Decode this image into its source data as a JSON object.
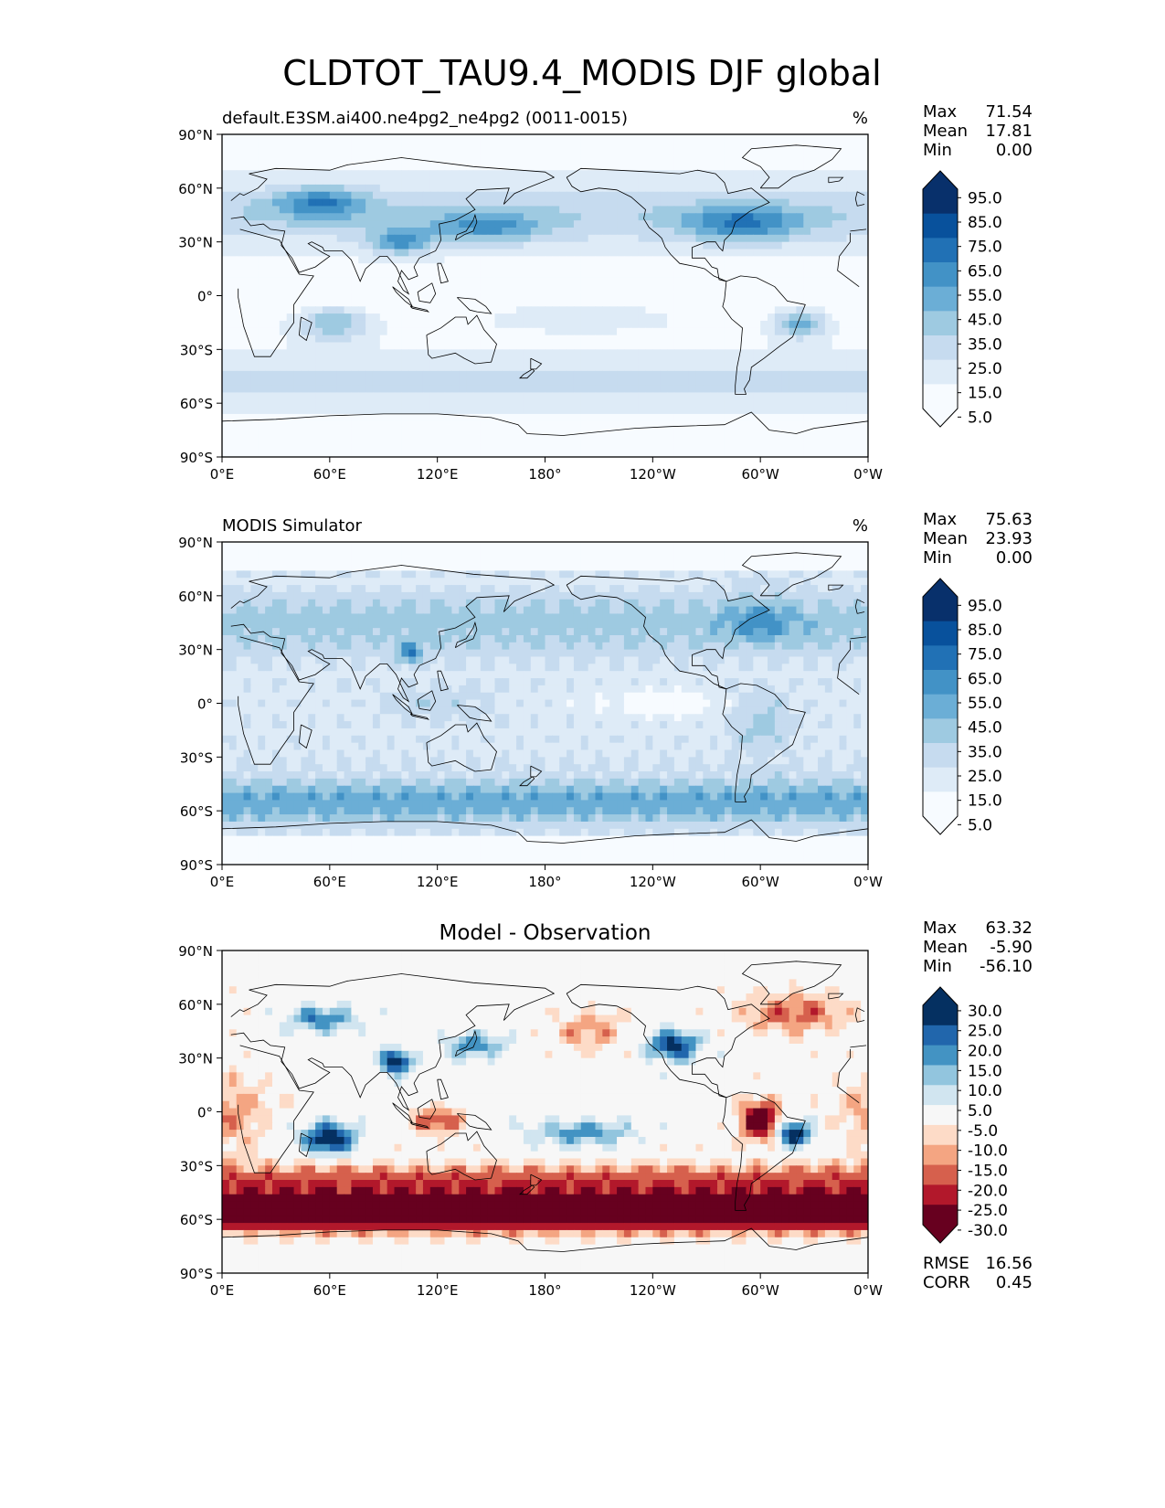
{
  "title": "CLDTOT_TAU9.4_MODIS DJF global",
  "colors": {
    "blues": [
      "#f7fbff",
      "#deebf7",
      "#c6dbef",
      "#9ecae1",
      "#6baed6",
      "#4292c6",
      "#2171b5",
      "#08519c",
      "#08306b"
    ],
    "diff": [
      "#67001f",
      "#b2182b",
      "#d6604d",
      "#f4a582",
      "#fddbc7",
      "#f7f7f7",
      "#d1e5f0",
      "#92c5de",
      "#4393c3",
      "#2166ac",
      "#053061"
    ],
    "coast": "#000000"
  },
  "axes": {
    "lat_ticks": [
      "90°N",
      "60°N",
      "30°N",
      "0°",
      "30°S",
      "60°S",
      "90°S"
    ],
    "lon_ticks": [
      "0°E",
      "60°E",
      "120°E",
      "180°",
      "120°W",
      "60°W",
      "0°W"
    ]
  },
  "chart_data": [
    {
      "type": "heatmap",
      "projection": "PlateCarree",
      "panel": "test",
      "left_title": "default.E3SM.ai400.ne4pg2_ne4pg2 (0011-0015)",
      "center_title": "",
      "units": "%",
      "xlim": [
        0,
        360
      ],
      "ylim": [
        -90,
        90
      ],
      "stats": {
        "labels": [
          "Max",
          "Mean",
          "Min"
        ],
        "values": [
          "71.54",
          "17.81",
          "0.00"
        ]
      },
      "colorbar": {
        "labels": [
          "95.0",
          "85.0",
          "75.0",
          "65.0",
          "55.0",
          "45.0",
          "35.0",
          "25.0",
          "15.0",
          "5.0"
        ],
        "extend": "both"
      },
      "features": [
        {
          "lon": 55,
          "lat": 52,
          "value": 62
        },
        {
          "lon": 100,
          "lat": 30,
          "value": 60
        },
        {
          "lon": 148,
          "lat": 38,
          "value": 58
        },
        {
          "lon": 290,
          "lat": 40,
          "value": 62
        },
        {
          "lon": 62,
          "lat": -15,
          "value": 55
        },
        {
          "lon": 322,
          "lat": -15,
          "value": 60
        },
        {
          "lon": 20,
          "lat": -50,
          "value": 40
        },
        {
          "lon": 340,
          "lat": -45,
          "value": 42
        }
      ]
    },
    {
      "type": "heatmap",
      "projection": "PlateCarree",
      "panel": "reference",
      "left_title": "MODIS Simulator",
      "center_title": "",
      "units": "%",
      "xlim": [
        0,
        360
      ],
      "ylim": [
        -90,
        90
      ],
      "stats": {
        "labels": [
          "Max",
          "Mean",
          "Min"
        ],
        "values": [
          "75.63",
          "23.93",
          "0.00"
        ]
      },
      "colorbar": {
        "labels": [
          "95.0",
          "85.0",
          "75.0",
          "65.0",
          "55.0",
          "45.0",
          "35.0",
          "25.0",
          "15.0",
          "5.0"
        ],
        "extend": "both"
      },
      "features": [
        {
          "lon": 105,
          "lat": 28,
          "value": 70
        },
        {
          "lon": 300,
          "lat": 45,
          "value": 65
        },
        {
          "lon": 300,
          "lat": -10,
          "value": 55
        },
        {
          "lon": 180,
          "lat": -55,
          "value": 62
        },
        {
          "lon": 330,
          "lat": -55,
          "value": 62
        }
      ]
    },
    {
      "type": "heatmap",
      "projection": "PlateCarree",
      "panel": "difference",
      "left_title": "",
      "center_title": "Model - Observation",
      "units": "",
      "xlim": [
        0,
        360
      ],
      "ylim": [
        -90,
        90
      ],
      "stats": {
        "labels": [
          "Max",
          "Mean",
          "Min"
        ],
        "values": [
          "63.32",
          "-5.90",
          "-56.10"
        ]
      },
      "metrics": {
        "labels": [
          "RMSE",
          "CORR"
        ],
        "values": [
          "16.56",
          "0.45"
        ]
      },
      "colorbar": {
        "labels": [
          "30.0",
          "25.0",
          "20.0",
          "15.0",
          "10.0",
          "5.0",
          "-5.0",
          "-10.0",
          "-15.0",
          "-20.0",
          "-25.0",
          "-30.0"
        ],
        "extend": "both"
      },
      "features": [
        {
          "lon": 60,
          "lat": -15,
          "value": 32
        },
        {
          "lon": 97,
          "lat": 28,
          "value": 31
        },
        {
          "lon": 318,
          "lat": -12,
          "value": 32
        },
        {
          "lon": 252,
          "lat": 37,
          "value": 28
        },
        {
          "lon": 55,
          "lat": 52,
          "value": 20
        },
        {
          "lon": 300,
          "lat": -5,
          "value": -34
        },
        {
          "lon": 180,
          "lat": -60,
          "value": -35
        },
        {
          "lon": 60,
          "lat": -55,
          "value": -35
        },
        {
          "lon": 320,
          "lat": 55,
          "value": -22
        },
        {
          "lon": 120,
          "lat": -5,
          "value": -22
        }
      ]
    }
  ]
}
